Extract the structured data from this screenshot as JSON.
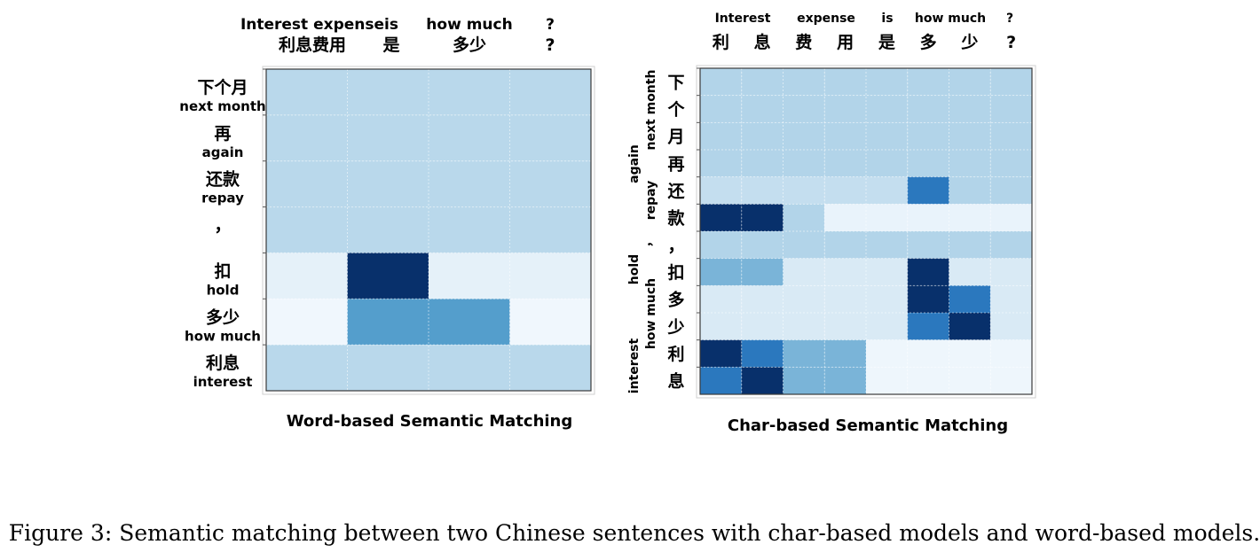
{
  "chart_data": [
    {
      "type": "heatmap",
      "title": "Word-based Semantic Matching",
      "columns": [
        {
          "en": "Interest expense",
          "cn": "利息费用"
        },
        {
          "en": "is",
          "cn": "是"
        },
        {
          "en": "how much",
          "cn": "多少"
        },
        {
          "en": "?",
          "cn": "?"
        }
      ],
      "rows": [
        {
          "cn": "下个月",
          "en": "next month"
        },
        {
          "cn": "再",
          "en": "again"
        },
        {
          "cn": "还款",
          "en": "repay"
        },
        {
          "cn": "，",
          "en": ""
        },
        {
          "cn": "扣",
          "en": "hold"
        },
        {
          "cn": "多少",
          "en": "how much"
        },
        {
          "cn": "利息",
          "en": "interest"
        }
      ],
      "values": [
        [
          0.27,
          0.27,
          0.27,
          0.27
        ],
        [
          0.27,
          0.27,
          0.27,
          0.27
        ],
        [
          0.27,
          0.27,
          0.27,
          0.27
        ],
        [
          0.27,
          0.27,
          0.27,
          0.27
        ],
        [
          0.08,
          1.0,
          0.08,
          0.08
        ],
        [
          0.03,
          0.55,
          0.55,
          0.03
        ],
        [
          0.27,
          0.27,
          0.27,
          0.27
        ]
      ]
    },
    {
      "type": "heatmap",
      "title": "Char-based Semantic Matching",
      "col_groups": [
        "Interest",
        "expense",
        "is",
        "how much",
        "?"
      ],
      "row_groups": [
        "next month",
        "again",
        "repay",
        "hold",
        "how much",
        "interest"
      ],
      "columns": [
        "利",
        "息",
        "费",
        "用",
        "是",
        "多",
        "少",
        "?"
      ],
      "rows": [
        "下",
        "个",
        "月",
        "再",
        "还",
        "款",
        "，",
        "扣",
        "多",
        "少",
        "利",
        "息"
      ],
      "values": [
        [
          0.3,
          0.3,
          0.3,
          0.3,
          0.3,
          0.3,
          0.3,
          0.3
        ],
        [
          0.3,
          0.3,
          0.3,
          0.3,
          0.3,
          0.3,
          0.3,
          0.3
        ],
        [
          0.3,
          0.3,
          0.3,
          0.3,
          0.3,
          0.3,
          0.3,
          0.3
        ],
        [
          0.3,
          0.3,
          0.3,
          0.3,
          0.3,
          0.3,
          0.3,
          0.3
        ],
        [
          0.22,
          0.22,
          0.22,
          0.22,
          0.22,
          0.75,
          0.3,
          0.3
        ],
        [
          1.0,
          1.0,
          0.3,
          0.06,
          0.06,
          0.06,
          0.06,
          0.06
        ],
        [
          0.3,
          0.3,
          0.3,
          0.3,
          0.3,
          0.3,
          0.3,
          0.3
        ],
        [
          0.45,
          0.45,
          0.13,
          0.13,
          0.13,
          1.0,
          0.13,
          0.13
        ],
        [
          0.13,
          0.13,
          0.13,
          0.13,
          0.13,
          1.0,
          0.75,
          0.13
        ],
        [
          0.13,
          0.13,
          0.13,
          0.13,
          0.13,
          0.75,
          1.0,
          0.13
        ],
        [
          1.0,
          0.75,
          0.45,
          0.45,
          0.04,
          0.04,
          0.04,
          0.04
        ],
        [
          0.75,
          1.0,
          0.45,
          0.45,
          0.04,
          0.04,
          0.04,
          0.04
        ]
      ]
    }
  ],
  "caption": "Figure 3: Semantic matching between two Chinese sentences with char-based models and word-based models."
}
